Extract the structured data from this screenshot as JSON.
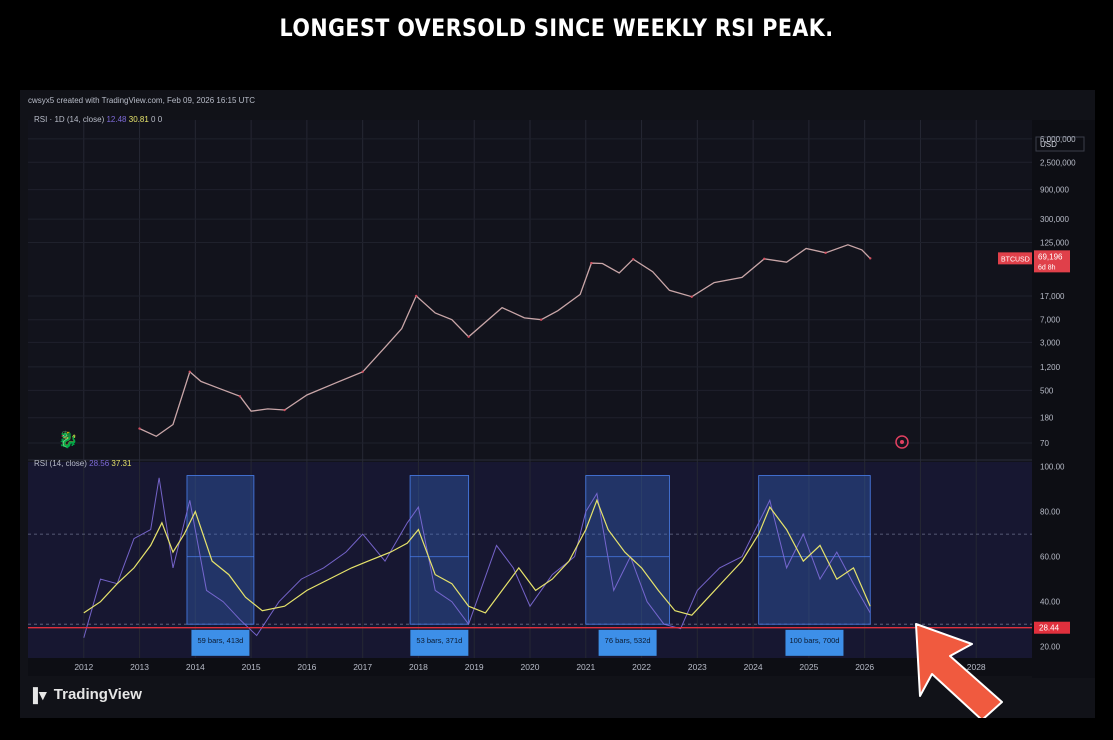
{
  "headline": "LONGEST OVERSOLD SINCE WEEKLY RSI PEAK.",
  "attribution": "cwsyx5 created with TradingView.com, Feb 09, 2026 16:15 UTC",
  "rsi_legend_top": {
    "name": "RSI · 1D (14, close)",
    "value1": "12.48",
    "value2": "30.81",
    "zero1": "0",
    "zero2": "0"
  },
  "rsi_legend_low": {
    "name": "RSI (14, close)",
    "value1": "28.56",
    "value2": "37.31"
  },
  "logo_text": "TradingView",
  "currency": "USD",
  "colors": {
    "background": "#111218",
    "rsi": "#7e6bd9",
    "rsi_ma": "#e6e36b",
    "highlight_box": "#3a6fd8",
    "label_box": "#3d8fe8",
    "oversold_line": "#e0303d",
    "price_tag": "#e0404a",
    "arrow": "#f05a3f"
  },
  "icons": {
    "dragon": "dragon-icon",
    "target": "target-icon",
    "arrow": "arrow-pointer-icon"
  },
  "chart_data": [
    {
      "type": "line",
      "series_name": "BTCUSD",
      "y_scale": "log",
      "y_ticks": [
        "6,000,000",
        "2,500,000",
        "900,000",
        "300,000",
        "125,000",
        "17,000",
        "7,000",
        "3,000",
        "1,200",
        "500",
        "180",
        "70"
      ],
      "y_tick_values": [
        6000000,
        2500000,
        900000,
        300000,
        125000,
        17000,
        7000,
        3000,
        1200,
        500,
        180,
        70
      ],
      "price_tag": "69,196",
      "price_tag_sub": "6d 8h",
      "x": [
        2013.0,
        2013.3,
        2013.6,
        2013.9,
        2014.1,
        2014.4,
        2014.8,
        2015.0,
        2015.3,
        2015.6,
        2016.0,
        2016.5,
        2017.0,
        2017.4,
        2017.7,
        2017.96,
        2018.3,
        2018.6,
        2018.9,
        2019.5,
        2019.9,
        2020.2,
        2020.5,
        2020.9,
        2021.1,
        2021.3,
        2021.6,
        2021.85,
        2022.2,
        2022.5,
        2022.9,
        2023.3,
        2023.8,
        2024.2,
        2024.6,
        2024.95,
        2025.3,
        2025.7,
        2025.95,
        2026.1
      ],
      "values": [
        120,
        90,
        140,
        1000,
        700,
        550,
        400,
        230,
        250,
        240,
        420,
        650,
        1000,
        2500,
        5000,
        17000,
        9000,
        7000,
        3700,
        11000,
        7500,
        7000,
        9800,
        18000,
        58000,
        57000,
        40000,
        67000,
        42000,
        21000,
        16500,
        28000,
        34000,
        68000,
        60000,
        100000,
        85000,
        115000,
        95000,
        69196
      ]
    },
    {
      "type": "line",
      "y_ticks": [
        "100.00",
        "80.00",
        "60.00",
        "40.00",
        "28.44",
        "20.00"
      ],
      "y_tick_values": [
        100,
        80,
        60,
        40,
        28.44,
        20
      ],
      "ylim": [
        15,
        102
      ],
      "x_ticks": [
        "2012",
        "2013",
        "2014",
        "2015",
        "2016",
        "2017",
        "2018",
        "2019",
        "2020",
        "2021",
        "2022",
        "2023",
        "2024",
        "2025",
        "2026",
        "2028"
      ],
      "x_tick_values": [
        2012,
        2013,
        2014,
        2015,
        2016,
        2017,
        2018,
        2019,
        2020,
        2021,
        2022,
        2023,
        2024,
        2025,
        2026,
        2028
      ],
      "oversold_level": 28.44,
      "series": [
        {
          "name": "RSI",
          "x": [
            2012.0,
            2012.3,
            2012.6,
            2012.9,
            2013.2,
            2013.35,
            2013.6,
            2013.9,
            2014.2,
            2014.5,
            2014.8,
            2015.1,
            2015.5,
            2015.9,
            2016.3,
            2016.7,
            2017.0,
            2017.4,
            2017.8,
            2018.0,
            2018.3,
            2018.6,
            2018.9,
            2019.4,
            2019.7,
            2020.0,
            2020.4,
            2020.8,
            2021.0,
            2021.2,
            2021.5,
            2021.8,
            2022.1,
            2022.4,
            2022.7,
            2023.0,
            2023.4,
            2023.8,
            2024.1,
            2024.3,
            2024.6,
            2024.9,
            2025.2,
            2025.5,
            2025.8,
            2026.1
          ],
          "values": [
            24,
            50,
            48,
            68,
            72,
            95,
            55,
            85,
            45,
            40,
            32,
            25,
            40,
            50,
            55,
            62,
            70,
            58,
            75,
            82,
            45,
            40,
            30,
            65,
            55,
            38,
            52,
            60,
            80,
            88,
            45,
            60,
            40,
            30,
            28,
            45,
            55,
            60,
            75,
            85,
            55,
            70,
            50,
            62,
            48,
            35
          ]
        },
        {
          "name": "RSI MA",
          "x": [
            2012.0,
            2012.3,
            2012.6,
            2012.9,
            2013.2,
            2013.4,
            2013.6,
            2013.8,
            2014.0,
            2014.3,
            2014.6,
            2014.9,
            2015.2,
            2015.6,
            2016.0,
            2016.4,
            2016.8,
            2017.1,
            2017.5,
            2017.8,
            2018.0,
            2018.3,
            2018.6,
            2018.9,
            2019.2,
            2019.5,
            2019.8,
            2020.1,
            2020.4,
            2020.7,
            2021.0,
            2021.2,
            2021.4,
            2021.7,
            2022.0,
            2022.3,
            2022.6,
            2022.9,
            2023.2,
            2023.5,
            2023.8,
            2024.1,
            2024.3,
            2024.6,
            2024.9,
            2025.2,
            2025.5,
            2025.8,
            2026.1
          ],
          "values": [
            35,
            40,
            48,
            55,
            65,
            75,
            62,
            70,
            80,
            58,
            52,
            42,
            36,
            38,
            45,
            50,
            55,
            58,
            62,
            66,
            72,
            52,
            48,
            38,
            35,
            45,
            55,
            45,
            50,
            58,
            72,
            85,
            72,
            62,
            55,
            45,
            36,
            34,
            42,
            50,
            58,
            70,
            82,
            72,
            58,
            65,
            50,
            55,
            38
          ]
        }
      ],
      "highlight_ranges": [
        {
          "x_start": 2013.85,
          "x_end": 2015.05,
          "label": "59 bars, 413d"
        },
        {
          "x_start": 2017.85,
          "x_end": 2018.9,
          "label": "53 bars, 371d"
        },
        {
          "x_start": 2021.0,
          "x_end": 2022.5,
          "label": "76 bars, 532d"
        },
        {
          "x_start": 2024.1,
          "x_end": 2026.1,
          "label": "100 bars, 700d"
        }
      ]
    }
  ]
}
